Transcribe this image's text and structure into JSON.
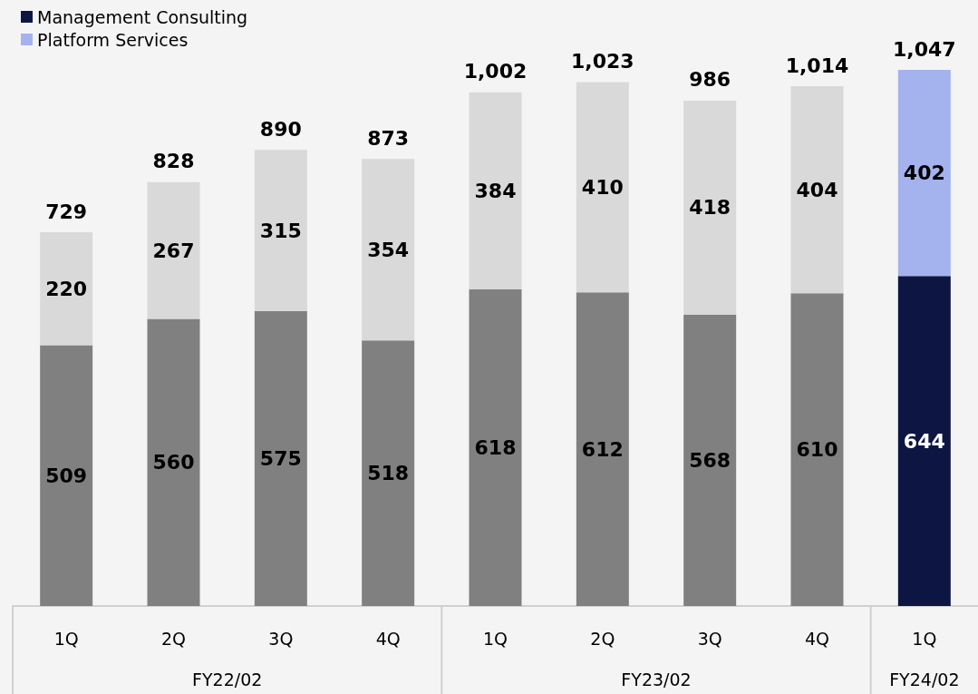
{
  "chart_data": {
    "type": "bar",
    "stacked": true,
    "categories": [
      "1Q",
      "2Q",
      "3Q",
      "4Q",
      "1Q",
      "2Q",
      "3Q",
      "4Q",
      "1Q"
    ],
    "series": [
      {
        "name": "Management Consulting",
        "color": "#0d1642",
        "values": [
          509,
          560,
          575,
          518,
          618,
          612,
          568,
          610,
          644
        ],
        "colors": [
          "#808080",
          "#808080",
          "#808080",
          "#808080",
          "#808080",
          "#808080",
          "#808080",
          "#808080",
          "#0d1642"
        ]
      },
      {
        "name": "Platform Services",
        "color": "#a4b2ee",
        "values": [
          220,
          267,
          315,
          354,
          384,
          410,
          418,
          404,
          402
        ],
        "colors": [
          "#d9d9d9",
          "#d9d9d9",
          "#d9d9d9",
          "#d9d9d9",
          "#d9d9d9",
          "#d9d9d9",
          "#d9d9d9",
          "#d9d9d9",
          "#a4b2ee"
        ]
      }
    ],
    "totals": [
      "729",
      "828",
      "890",
      "873",
      "1,002",
      "1,023",
      "986",
      "1,014",
      "1,047"
    ],
    "annotations": [
      "FY22/02",
      "FY23/02",
      "FY24/02"
    ],
    "data_labels": true,
    "legend": "top left"
  }
}
